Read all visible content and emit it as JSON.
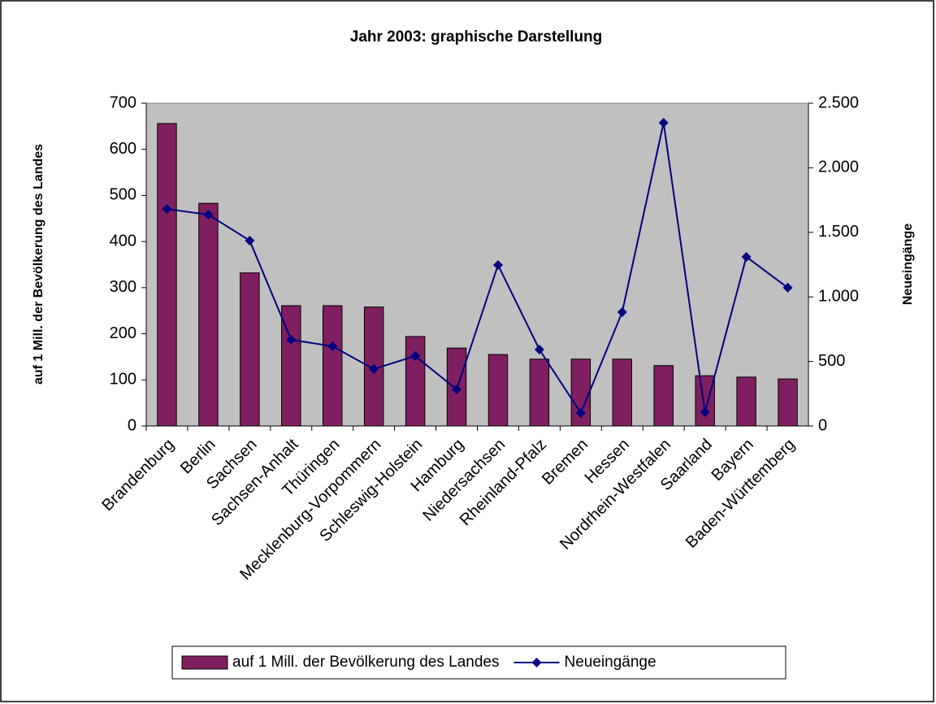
{
  "chart_data": {
    "type": "bar",
    "title": "Jahr 2003: graphische Darstellung",
    "y_label": "auf 1 Mill. der Bevölkerung des Landes",
    "y2_label": "Neueingänge",
    "categories": [
      "Brandenburg",
      "Berlin",
      "Sachsen",
      "Sachsen-Anhalt",
      "Thüringen",
      "Mecklenburg-Vorpommern",
      "Schleswig-Holstein",
      "Hamburg",
      "Niedersachsen",
      "Rheinland-Pfalz",
      "Bremen",
      "Hessen",
      "Nordrhein-Westfalen",
      "Saarland",
      "Bayern",
      "Baden-Württemberg"
    ],
    "series": [
      {
        "name": "auf 1 Mill. der Bevölkerung des Landes",
        "type": "bar",
        "color": "#7f1f5f",
        "values": [
          656,
          483,
          332,
          261,
          261,
          258,
          194,
          169,
          155,
          145,
          145,
          145,
          131,
          109,
          106,
          102
        ]
      },
      {
        "name": "Neueingänge",
        "type": "line",
        "axis": "y2",
        "color": "#000080",
        "values": [
          1681,
          1637,
          1436,
          668,
          617,
          441,
          542,
          283,
          1247,
          592,
          101,
          882,
          2349,
          107,
          1310,
          1071
        ]
      }
    ],
    "ylim": [
      0,
      700
    ],
    "yticks": [
      0,
      100,
      200,
      300,
      400,
      500,
      600,
      700
    ],
    "y2lim": [
      0,
      2500
    ],
    "y2ticks": [
      0,
      500,
      {
        "value": 1000,
        "label": "1.000"
      },
      {
        "value": 1500,
        "label": "1.500"
      },
      {
        "value": 2000,
        "label": "2.000"
      },
      {
        "value": 2500,
        "label": "2.500"
      }
    ],
    "plot_background": "#c0c0c0",
    "legend": "bottom"
  }
}
